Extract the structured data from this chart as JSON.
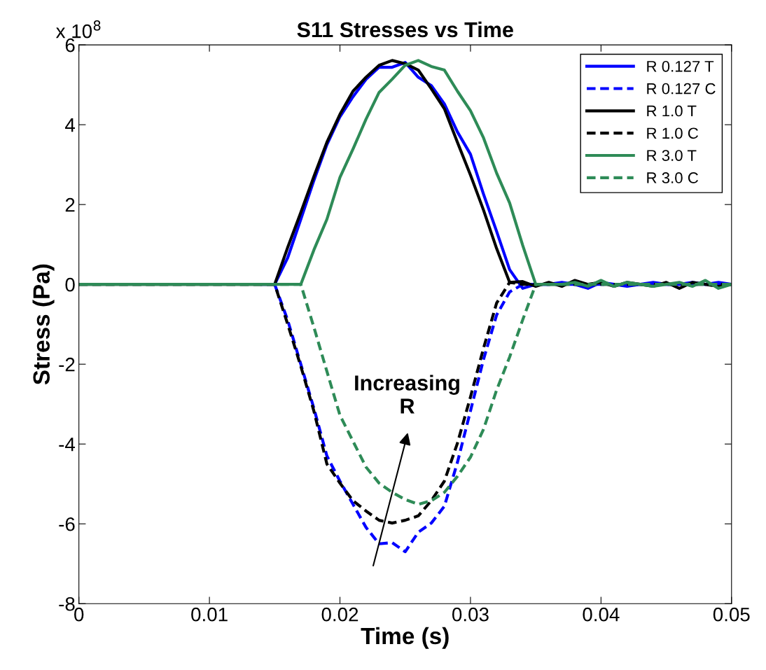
{
  "chart_data": {
    "type": "line",
    "title": "S11 Stresses vs Time",
    "xlabel": "Time (s)",
    "ylabel": "Stress (Pa)",
    "annotations": [
      "x 10$^{8}$",
      "Increasing\nR"
    ],
    "x": [
      0,
      0.001,
      0.002,
      0.003,
      0.004,
      0.005,
      0.006,
      0.007,
      0.008,
      0.009,
      0.01,
      0.011,
      0.012,
      0.013,
      0.014,
      0.015,
      0.016,
      0.017,
      0.018,
      0.019,
      0.02,
      0.021,
      0.022,
      0.023,
      0.024,
      0.025,
      0.026,
      0.027,
      0.028,
      0.029,
      0.03,
      0.031,
      0.032,
      0.033,
      0.034,
      0.035,
      0.036,
      0.037,
      0.038,
      0.039,
      0.04,
      0.041,
      0.042,
      0.043,
      0.044,
      0.045,
      0.046,
      0.047,
      0.048,
      0.049,
      0.05
    ],
    "series": [
      {
        "name": "R 0.127 T",
        "color": "#0000ff",
        "line_style": "solid",
        "values": [
          null,
          null,
          null,
          null,
          null,
          null,
          null,
          null,
          null,
          null,
          null,
          null,
          null,
          null,
          0,
          0,
          0.67,
          1.63,
          2.6,
          3.5,
          4.2,
          4.7,
          5.14,
          5.44,
          5.44,
          5.56,
          5.19,
          4.98,
          4.52,
          3.82,
          3.26,
          2.26,
          1.33,
          0.37,
          -0.1,
          0,
          0,
          0.05,
          0,
          -0.1,
          0.05,
          0,
          -0.05,
          0,
          0.05,
          0,
          0,
          0.05,
          0,
          0.05,
          0
        ]
      },
      {
        "name": "R 0.127 C",
        "color": "#0000ff",
        "line_style": "dashed",
        "values": [
          null,
          null,
          null,
          null,
          null,
          null,
          null,
          null,
          null,
          null,
          null,
          null,
          null,
          null,
          null,
          0,
          -0.9,
          -2.0,
          -3.1,
          -4.3,
          -4.93,
          -5.51,
          -6.09,
          -6.5,
          -6.47,
          -6.7,
          -6.21,
          -5.98,
          -5.56,
          -4.46,
          -3.17,
          -1.88,
          -0.77,
          -0.19,
          0,
          0,
          0,
          0,
          0,
          0,
          0,
          0,
          0,
          0,
          0,
          0,
          0,
          0,
          0,
          0,
          0
        ]
      },
      {
        "name": "R 1.0 T",
        "color": "#000000",
        "line_style": "solid",
        "values": [
          0,
          0,
          0,
          0,
          0,
          0,
          0,
          0,
          0,
          0,
          0,
          0,
          0,
          0,
          0,
          0,
          0.93,
          1.8,
          2.7,
          3.56,
          4.26,
          4.84,
          5.19,
          5.49,
          5.61,
          5.53,
          5.37,
          4.9,
          4.4,
          3.56,
          2.74,
          1.86,
          0.9,
          0.05,
          0.07,
          -0.05,
          0.05,
          -0.05,
          0.1,
          0,
          0.05,
          -0.05,
          0.05,
          0,
          -0.05,
          0.05,
          -0.1,
          0.05,
          0,
          -0.05,
          0
        ]
      },
      {
        "name": "R 1.0 C",
        "color": "#000000",
        "line_style": "dashed",
        "values": [
          0,
          0,
          0,
          0,
          0,
          0,
          0,
          0,
          0,
          0,
          0,
          0,
          0,
          0,
          0,
          0,
          -1.0,
          -2.05,
          -3.17,
          -4.5,
          -4.98,
          -5.42,
          -5.68,
          -5.91,
          -5.98,
          -5.91,
          -5.8,
          -5.42,
          -4.93,
          -3.98,
          -2.82,
          -1.6,
          -0.47,
          0.05,
          0,
          0,
          0,
          0,
          0,
          0,
          0,
          0,
          0,
          0,
          0,
          0,
          0,
          0,
          0,
          0,
          0
        ]
      },
      {
        "name": "R 3.0 T",
        "color": "#2e8b57",
        "line_style": "solid",
        "values": [
          0,
          0,
          0,
          0,
          0,
          0,
          0,
          0,
          0,
          0,
          0,
          0,
          0,
          0,
          0,
          0,
          0,
          0,
          0.86,
          1.63,
          2.68,
          3.39,
          4.14,
          4.81,
          5.14,
          5.49,
          5.61,
          5.46,
          5.37,
          4.84,
          4.35,
          3.67,
          2.79,
          2.04,
          0.98,
          0,
          0,
          0,
          0.05,
          -0.05,
          0.1,
          -0.05,
          0.05,
          0,
          -0.05,
          0,
          0.05,
          -0.05,
          0.1,
          -0.1,
          0
        ]
      },
      {
        "name": "R 3.0 C",
        "color": "#2e8b57",
        "line_style": "dashed",
        "values": [
          0,
          0,
          0,
          0,
          0,
          0,
          0,
          0,
          0,
          0,
          0,
          0,
          0,
          0,
          0,
          0,
          0,
          0,
          -1.07,
          -2.18,
          -3.28,
          -3.93,
          -4.58,
          -4.98,
          -5.21,
          -5.39,
          -5.51,
          -5.42,
          -5.21,
          -4.81,
          -4.33,
          -3.63,
          -2.65,
          -1.82,
          -0.89,
          0,
          0,
          0,
          0,
          0,
          0,
          0,
          0,
          0,
          0,
          0,
          0,
          0,
          0,
          0,
          0
        ]
      }
    ],
    "xlim": [
      0,
      0.05
    ],
    "xticks": [
      0,
      0.01,
      0.02,
      0.03,
      0.04,
      0.05
    ],
    "ylim": [
      -8,
      6
    ],
    "yticks": [
      -8,
      -6,
      -4,
      -2,
      0,
      2,
      4,
      6
    ],
    "grid": false,
    "legend": "top right",
    "marker": "none"
  }
}
